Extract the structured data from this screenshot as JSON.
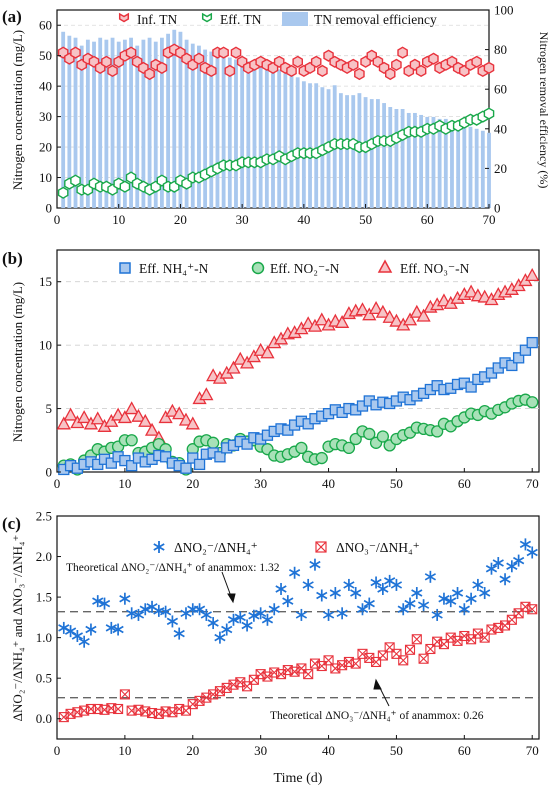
{
  "chart_data": [
    {
      "panel": "(a)",
      "type": "bar+scatter",
      "xlim": [
        0,
        70
      ],
      "xticks": [
        0,
        10,
        20,
        30,
        40,
        50,
        60,
        70
      ],
      "ylim": [
        0,
        65
      ],
      "yticks": [
        0,
        10,
        20,
        30,
        40,
        50,
        60
      ],
      "y2lim": [
        0,
        100
      ],
      "y2ticks": [
        0,
        20,
        40,
        60,
        80,
        100
      ],
      "ylabel": "Nitrogen concentration (mg/L)",
      "y2label": "Nitrogen removal efficiency (%)",
      "legend": [
        "Inf. TN",
        "Eff. TN",
        "TN removal efficiency"
      ],
      "legend_position": "top",
      "colors": {
        "inf": "#e8323c",
        "inf_fill": "#f7c3c6",
        "eff": "#19a84a",
        "bar": "#a9c8ee"
      },
      "days": [
        1,
        2,
        3,
        4,
        5,
        6,
        7,
        8,
        9,
        10,
        11,
        12,
        13,
        14,
        15,
        16,
        17,
        18,
        19,
        20,
        21,
        22,
        23,
        24,
        25,
        26,
        27,
        28,
        29,
        30,
        31,
        32,
        33,
        34,
        35,
        36,
        37,
        38,
        39,
        40,
        41,
        42,
        43,
        44,
        45,
        46,
        47,
        48,
        49,
        50,
        51,
        52,
        53,
        54,
        55,
        56,
        57,
        58,
        59,
        60,
        61,
        62,
        63,
        64,
        65,
        66,
        67,
        68,
        69,
        70
      ],
      "inf_tn": [
        51,
        49,
        51,
        47,
        49,
        48,
        46,
        48,
        45,
        48,
        50,
        51,
        48,
        46,
        44,
        47,
        46,
        51,
        52,
        51,
        49,
        47,
        49,
        46,
        45,
        51,
        51,
        45,
        51,
        48,
        46,
        47,
        48,
        47,
        46,
        48,
        46,
        45,
        48,
        45,
        46,
        48,
        45,
        50,
        48,
        47,
        46,
        47,
        44,
        48,
        50,
        48,
        46,
        44,
        47,
        51,
        45,
        47,
        45,
        48,
        49,
        46,
        47,
        48,
        46,
        45,
        47,
        48,
        45,
        46
      ],
      "eff_tn": [
        5,
        8,
        9,
        6,
        6,
        8,
        7,
        7,
        6,
        8,
        7,
        10,
        8,
        7,
        6,
        7,
        9,
        7,
        7,
        9,
        8,
        10,
        10,
        11,
        12,
        13,
        14,
        14,
        14,
        15,
        15,
        15,
        15,
        16,
        16,
        17,
        16,
        17,
        18,
        18,
        18,
        18,
        19,
        20,
        21,
        21,
        21,
        21,
        20,
        20,
        21,
        22,
        22,
        22,
        23,
        24,
        25,
        25,
        25,
        26,
        26,
        27,
        26,
        27,
        27,
        28,
        29,
        29,
        30,
        31
      ],
      "tn_removal_efficiency": [
        89,
        87,
        86,
        82,
        85,
        84,
        86,
        85,
        86,
        84,
        85,
        86,
        82,
        85,
        86,
        84,
        86,
        88,
        90,
        89,
        85,
        83,
        82,
        80,
        79,
        78,
        76,
        76,
        75,
        75,
        74,
        73,
        72,
        72,
        70,
        70,
        68,
        67,
        66,
        64,
        63,
        63,
        61,
        60,
        62,
        58,
        57,
        57,
        58,
        56,
        55,
        55,
        53,
        51,
        50,
        50,
        48,
        48,
        47,
        46,
        46,
        45,
        45,
        44,
        44,
        42,
        41,
        40,
        39,
        38
      ]
    },
    {
      "panel": "(b)",
      "type": "scatter",
      "xlim": [
        0,
        71
      ],
      "xticks": [
        0,
        10,
        20,
        30,
        40,
        50,
        60,
        70
      ],
      "ylim": [
        0,
        17.5
      ],
      "yticks": [
        0,
        5,
        10,
        15
      ],
      "ylabel": "Nitrogen concentration (mg/L)",
      "legend_position": "top",
      "colors": {
        "nh4": "#1f73d6",
        "no2": "#19a84a",
        "no3": "#e8323c"
      },
      "days": [
        1,
        2,
        3,
        4,
        5,
        6,
        7,
        8,
        9,
        10,
        11,
        12,
        13,
        14,
        15,
        16,
        17,
        18,
        19,
        20,
        21,
        22,
        23,
        24,
        25,
        26,
        27,
        28,
        29,
        30,
        31,
        32,
        33,
        34,
        35,
        36,
        37,
        38,
        39,
        40,
        41,
        42,
        43,
        44,
        45,
        46,
        47,
        48,
        49,
        50,
        51,
        52,
        53,
        54,
        55,
        56,
        57,
        58,
        59,
        60,
        61,
        62,
        63,
        64,
        65,
        66,
        67,
        68,
        69,
        70
      ],
      "series": [
        {
          "name": "Eff. NH₄⁺-N",
          "marker": "square",
          "values": [
            0.2,
            0.5,
            0.3,
            0.6,
            0.8,
            0.6,
            1.0,
            0.7,
            1.2,
            0.9,
            0.5,
            1.1,
            0.8,
            1.0,
            1.3,
            1.2,
            0.7,
            0.5,
            0.3,
            1.1,
            0.6,
            1.4,
            1.5,
            1.2,
            1.9,
            2.1,
            2.4,
            2.2,
            2.7,
            2.6,
            2.9,
            3.2,
            3.4,
            3.3,
            3.7,
            4.0,
            3.8,
            4.2,
            4.4,
            4.6,
            4.9,
            4.7,
            5.0,
            4.9,
            5.2,
            5.6,
            5.3,
            5.5,
            5.4,
            5.6,
            5.9,
            5.7,
            6.0,
            6.2,
            6.5,
            6.8,
            6.5,
            6.6,
            6.9,
            7.0,
            6.7,
            7.3,
            7.5,
            7.8,
            8.2,
            8.6,
            8.4,
            9.0,
            9.6,
            10.2
          ]
        },
        {
          "name": "Eff. NO₂⁻-N",
          "marker": "circle",
          "values": [
            0.5,
            0.6,
            0.2,
            0.9,
            1.3,
            1.8,
            1.6,
            1.9,
            2.0,
            2.5,
            2.5,
            1.5,
            1.6,
            1.9,
            2.2,
            1.8,
            0.8,
            0.7,
            0.2,
            1.8,
            2.4,
            2.5,
            2.3,
            1.5,
            2.2,
            2.1,
            2.6,
            2.4,
            2.5,
            2.0,
            1.8,
            1.3,
            1.2,
            1.4,
            1.6,
            1.9,
            1.2,
            1.0,
            1.1,
            2.0,
            2.2,
            2.1,
            1.9,
            2.6,
            3.2,
            3.0,
            2.3,
            2.8,
            2.1,
            2.6,
            2.9,
            3.1,
            3.5,
            3.4,
            3.3,
            3.2,
            3.8,
            3.6,
            4.0,
            4.3,
            4.6,
            4.5,
            4.8,
            4.6,
            4.9,
            5.1,
            5.4,
            5.6,
            5.7,
            5.5
          ]
        },
        {
          "name": "Eff. NO₃⁻-N",
          "marker": "triangle",
          "values": [
            3.8,
            4.5,
            3.9,
            4.3,
            3.8,
            4.2,
            3.6,
            4.0,
            4.5,
            4.3,
            5.0,
            4.4,
            4.0,
            3.3,
            2.7,
            4.3,
            4.8,
            4.6,
            4.1,
            3.8,
            5.8,
            6.1,
            7.6,
            7.4,
            7.8,
            8.2,
            8.9,
            8.6,
            9.1,
            9.6,
            9.4,
            10.2,
            10.5,
            10.9,
            11.0,
            11.3,
            11.7,
            11.5,
            12.0,
            11.6,
            11.9,
            11.8,
            12.5,
            12.7,
            12.8,
            12.4,
            12.9,
            12.6,
            12.2,
            11.9,
            11.6,
            12.0,
            12.6,
            12.3,
            13.0,
            13.2,
            13.5,
            13.3,
            13.7,
            14.0,
            14.2,
            13.9,
            13.8,
            13.6,
            14.0,
            14.2,
            14.4,
            14.7,
            15.1,
            15.5
          ]
        }
      ]
    },
    {
      "panel": "(c)",
      "type": "scatter",
      "xlim": [
        0,
        71
      ],
      "xticks": [
        0,
        10,
        20,
        30,
        40,
        50,
        60,
        70
      ],
      "ylim": [
        -0.25,
        2.5
      ],
      "yticks": [
        0.0,
        0.5,
        1.0,
        1.5,
        2.0,
        2.5
      ],
      "xlabel": "Time (d)",
      "ylabel": "ΔNO₂⁻/ΔNH₄⁺ and ΔNO₃⁻/ΔNH₄⁺",
      "legend_position": "top",
      "colors": {
        "r_no2": "#1f73d6",
        "r_no3": "#e8323c",
        "ref": "#666666"
      },
      "days": [
        1,
        2,
        3,
        4,
        5,
        6,
        7,
        8,
        9,
        10,
        11,
        12,
        13,
        14,
        15,
        16,
        17,
        18,
        19,
        20,
        21,
        22,
        23,
        24,
        25,
        26,
        27,
        28,
        29,
        30,
        31,
        32,
        33,
        34,
        35,
        36,
        37,
        38,
        39,
        40,
        41,
        42,
        43,
        44,
        45,
        46,
        47,
        48,
        49,
        50,
        51,
        52,
        53,
        54,
        55,
        56,
        57,
        58,
        59,
        60,
        61,
        62,
        63,
        64,
        65,
        66,
        67,
        68,
        69,
        70
      ],
      "series": [
        {
          "name": "ΔNO₂⁻/ΔNH₄⁺",
          "marker": "asterisk",
          "values": [
            1.12,
            1.08,
            1.02,
            0.95,
            1.1,
            1.45,
            1.42,
            1.12,
            1.1,
            1.48,
            1.3,
            1.28,
            1.35,
            1.38,
            1.33,
            1.32,
            1.2,
            1.05,
            1.3,
            1.35,
            1.35,
            1.28,
            1.18,
            1.0,
            1.1,
            1.22,
            1.25,
            1.15,
            1.27,
            1.3,
            1.22,
            1.35,
            1.6,
            1.45,
            1.8,
            1.28,
            1.65,
            1.9,
            1.52,
            1.28,
            1.55,
            1.3,
            1.65,
            1.55,
            1.35,
            1.42,
            1.68,
            1.6,
            1.7,
            1.65,
            1.35,
            1.42,
            1.55,
            1.4,
            1.75,
            1.28,
            1.48,
            1.45,
            1.55,
            1.35,
            1.48,
            1.65,
            1.55,
            1.85,
            1.92,
            1.72,
            1.88,
            1.95,
            2.15,
            2.05
          ]
        },
        {
          "name": "ΔNO₃⁻/ΔNH₄⁺",
          "marker": "x-square",
          "values": [
            0.02,
            0.06,
            0.08,
            0.1,
            0.12,
            0.12,
            0.11,
            0.13,
            0.12,
            0.3,
            0.1,
            0.11,
            0.09,
            0.07,
            0.06,
            0.09,
            0.08,
            0.12,
            0.1,
            0.18,
            0.22,
            0.26,
            0.3,
            0.34,
            0.38,
            0.42,
            0.45,
            0.4,
            0.48,
            0.55,
            0.52,
            0.57,
            0.55,
            0.6,
            0.58,
            0.62,
            0.55,
            0.68,
            0.65,
            0.72,
            0.62,
            0.66,
            0.7,
            0.68,
            0.8,
            0.75,
            0.7,
            0.78,
            0.88,
            0.8,
            0.72,
            0.85,
            0.98,
            0.74,
            0.86,
            0.95,
            0.92,
            1.0,
            0.96,
            1.02,
            0.98,
            1.05,
            1.0,
            1.1,
            1.12,
            1.15,
            1.22,
            1.3,
            1.38,
            1.35
          ]
        }
      ],
      "references": [
        {
          "y": 1.32,
          "label": "Theoretical ΔNO₂⁻/ΔNH₄⁺ of anammox: 1.32"
        },
        {
          "y": 0.26,
          "label": "Theoretical ΔNO₃⁻/ΔNH₄⁺ of anammox: 0.26"
        }
      ]
    }
  ],
  "labels": {
    "panel_a": "(a)",
    "panel_b": "(b)",
    "panel_c": "(c)",
    "a_legend_inf": "Inf. TN",
    "a_legend_eff": "Eff. TN",
    "a_legend_bar": "TN removal efficiency",
    "a_ylabel": "Nitrogen concentration (mg/L)",
    "a_y2label": "Nitrogen removal efficiency (%)",
    "b_legend_nh4": "Eff. NH₄⁺-N",
    "b_legend_no2": "Eff. NO₂⁻-N",
    "b_legend_no3": "Eff. NO₃⁻-N",
    "b_ylabel": "Nitrogen concentration (mg/L)",
    "c_legend_no2": "ΔNO₂⁻/ΔNH₄⁺",
    "c_legend_no3": "ΔNO₃⁻/ΔNH₄⁺",
    "c_ylabel": "ΔNO₂⁻/ΔNH₄⁺ and ΔNO₃⁻/ΔNH₄⁺",
    "c_ref1": "Theoretical ΔNO₂⁻/ΔNH₄⁺ of anammox: 1.32",
    "c_ref2": "Theoretical ΔNO₃⁻/ΔNH₄⁺ of anammox: 0.26",
    "c_xlabel": "Time (d)"
  }
}
